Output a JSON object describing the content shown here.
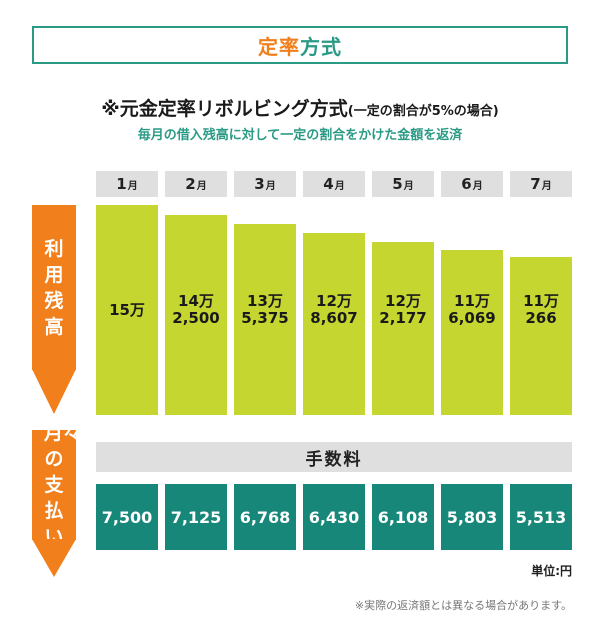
{
  "title": {
    "accent": "定率",
    "rest": "方式"
  },
  "heading": {
    "main": "※元金定率リボルビング方式",
    "note": "(一定の割合が5%の場合)"
  },
  "subheading": "毎月の借入残高に対して一定の割合をかけた金額を返済",
  "month_unit": "月",
  "side_labels": {
    "balance": "利用残高",
    "payment": "月々の支払い"
  },
  "fee_label": "手数料",
  "unit_note": "単位:円",
  "footnote": "※実際の返済額とは異なる場合があります。",
  "colors": {
    "accent": "#f07f1c",
    "teal": "#2a9a84",
    "bar": "#c6d630",
    "payment": "#17877a",
    "tab": "#dfdfdf"
  },
  "chart_data": {
    "type": "bar",
    "categories": [
      "1",
      "2",
      "3",
      "4",
      "5",
      "6",
      "7"
    ],
    "series": [
      {
        "name": "利用残高",
        "values": [
          150000,
          142500,
          135375,
          128607,
          122177,
          116069,
          110266
        ]
      },
      {
        "name": "月々の支払い",
        "values": [
          7500,
          7125,
          6768,
          6430,
          6108,
          5803,
          5513
        ]
      }
    ],
    "balance_labels": [
      "15万",
      "14万\n2,500",
      "13万\n5,375",
      "12万\n8,607",
      "12万\n2,177",
      "11万\n6,069",
      "11万\n266"
    ],
    "payment_labels": [
      "7,500",
      "7,125",
      "6,768",
      "6,430",
      "6,108",
      "5,803",
      "5,513"
    ],
    "ylabel": "利用残高",
    "unit": "円"
  }
}
